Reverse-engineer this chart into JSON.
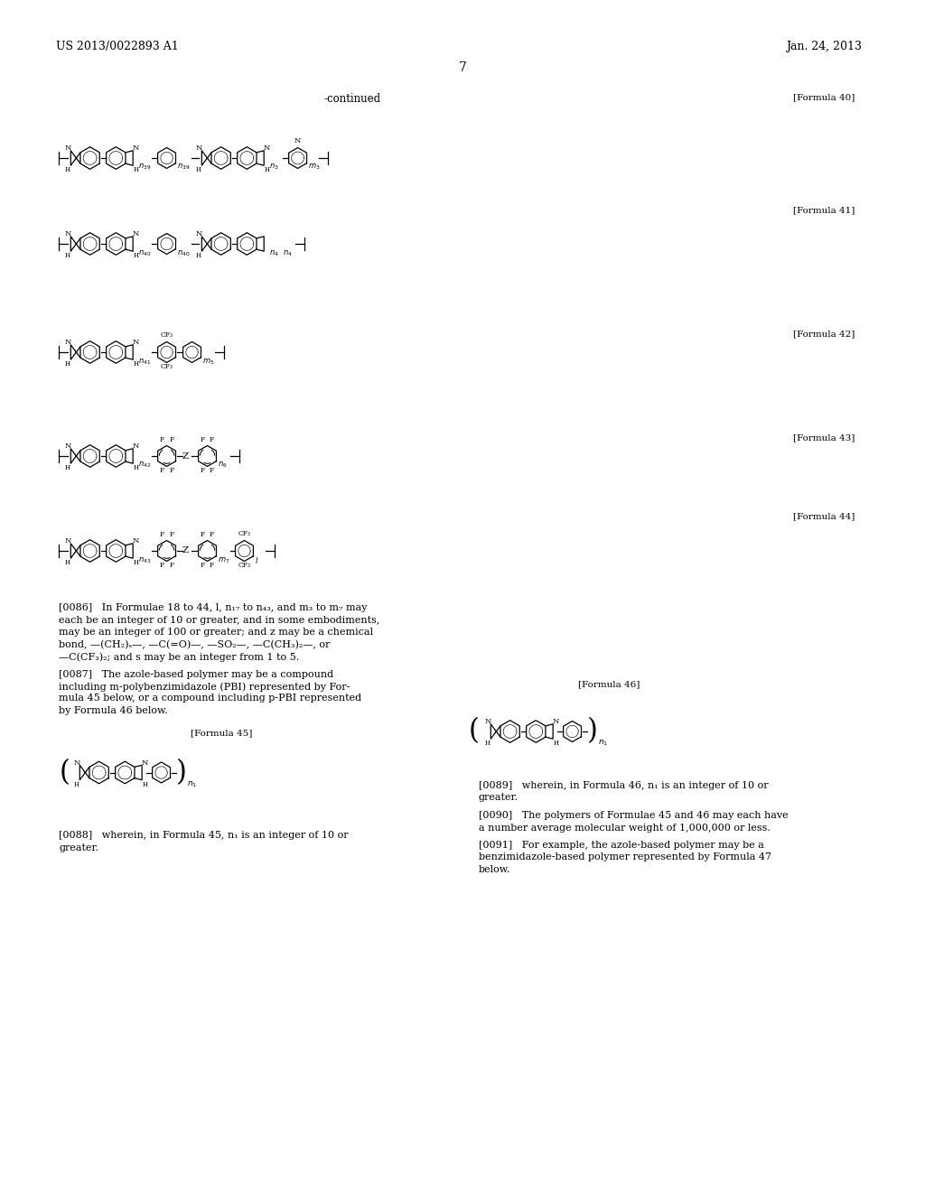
{
  "page_header_left": "US 2013/0022893 A1",
  "page_header_right": "Jan. 24, 2013",
  "page_number": "7",
  "continued_text": "-continued",
  "background_color": "#ffffff",
  "formula_labels": {
    "40": "[Formula 40]",
    "41": "[Formula 41]",
    "42": "[Formula 42]",
    "43": "[Formula 43]",
    "44": "[Formula 44]",
    "45": "[Formula 45]",
    "46": "[Formula 46]"
  },
  "para_0086": "[0086]   In Formulae 18 to 44, l, n17 to n43, and m3 to m7 may each be an integer of 10 or greater, and in some embodiments, may be an integer of 100 or greater; and z may be a chemical bond, --(CH2)s--, --C(=O)--, --SO2--, --C(CH3)2--, or --C(CF3)2; and s may be an integer from 1 to 5.",
  "para_0087": "[0087]   The azole-based polymer may be a compound including m-polybenzimidazole (PBI) represented by Formula 45 below, or a compound including p-PBI represented by Formula 46 below.",
  "para_0088": "[0088]   wherein, in Formula 45, n1 is an integer of 10 or greater.",
  "para_0089": "[0089]   wherein, in Formula 46, n1 is an integer of 10 or greater.",
  "para_0090": "[0090]   The polymers of Formulae 45 and 46 may each have a number average molecular weight of 1,000,000 or less.",
  "para_0091": "[0091]   For example, the azole-based polymer may be a benzimidazole-based polymer represented by Formula 47 below."
}
